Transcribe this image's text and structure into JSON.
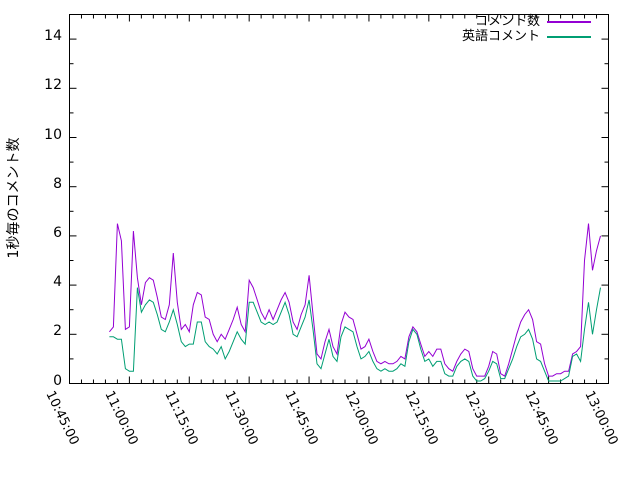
{
  "chart_data": {
    "type": "line",
    "title": "",
    "xlabel": "",
    "ylabel": "1秒毎のコメント数",
    "grid": "off",
    "legend_position": "top-right-inside",
    "background_color": "#ffffff",
    "axis_color": "#000000",
    "ylim": [
      0,
      15
    ],
    "y_ticks": [
      0,
      2,
      4,
      6,
      8,
      10,
      12,
      14
    ],
    "y_minor_step": 1,
    "x_range_minutes": [
      645,
      780
    ],
    "x_major_tick_minutes": 15,
    "x_minor_tick_minutes": 3,
    "x_tick_labels": [
      "10:45:00",
      "11:00:00",
      "11:15:00",
      "11:30:00",
      "11:45:00",
      "12:00:00",
      "12:15:00",
      "12:30:00",
      "12:45:00",
      "13:00:00"
    ],
    "x_times": [
      "10:55:00",
      "10:56:00",
      "10:57:00",
      "10:58:00",
      "10:59:00",
      "11:00:00",
      "11:01:00",
      "11:02:00",
      "11:03:00",
      "11:04:00",
      "11:05:00",
      "11:06:00",
      "11:07:00",
      "11:08:00",
      "11:09:00",
      "11:10:00",
      "11:11:00",
      "11:12:00",
      "11:13:00",
      "11:14:00",
      "11:15:00",
      "11:16:00",
      "11:17:00",
      "11:18:00",
      "11:19:00",
      "11:20:00",
      "11:21:00",
      "11:22:00",
      "11:23:00",
      "11:24:00",
      "11:25:00",
      "11:26:00",
      "11:27:00",
      "11:28:00",
      "11:29:00",
      "11:30:00",
      "11:31:00",
      "11:32:00",
      "11:33:00",
      "11:34:00",
      "11:35:00",
      "11:36:00",
      "11:37:00",
      "11:38:00",
      "11:39:00",
      "11:40:00",
      "11:41:00",
      "11:42:00",
      "11:43:00",
      "11:44:00",
      "11:45:00",
      "11:46:00",
      "11:47:00",
      "11:48:00",
      "11:49:00",
      "11:50:00",
      "11:51:00",
      "11:52:00",
      "11:53:00",
      "11:54:00",
      "11:55:00",
      "11:56:00",
      "11:57:00",
      "11:58:00",
      "11:59:00",
      "12:00:00",
      "12:01:00",
      "12:02:00",
      "12:03:00",
      "12:04:00",
      "12:05:00",
      "12:06:00",
      "12:07:00",
      "12:08:00",
      "12:09:00",
      "12:10:00",
      "12:11:00",
      "12:12:00",
      "12:13:00",
      "12:14:00",
      "12:15:00",
      "12:16:00",
      "12:17:00",
      "12:18:00",
      "12:19:00",
      "12:20:00",
      "12:21:00",
      "12:22:00",
      "12:23:00",
      "12:24:00",
      "12:25:00",
      "12:26:00",
      "12:27:00",
      "12:28:00",
      "12:29:00",
      "12:30:00",
      "12:31:00",
      "12:32:00",
      "12:33:00",
      "12:34:00",
      "12:35:00",
      "12:36:00",
      "12:37:00",
      "12:38:00",
      "12:39:00",
      "12:40:00",
      "12:41:00",
      "12:42:00",
      "12:43:00",
      "12:44:00",
      "12:45:00",
      "12:46:00",
      "12:47:00",
      "12:48:00",
      "12:49:00",
      "12:50:00",
      "12:51:00",
      "12:52:00",
      "12:53:00",
      "12:54:00",
      "12:55:00",
      "12:56:00",
      "12:57:00",
      "12:58:00"
    ],
    "series": [
      {
        "name": "コメント数",
        "color": "#9400d3",
        "values": [
          2.1,
          2.3,
          6.5,
          5.8,
          2.2,
          2.3,
          6.2,
          4.3,
          3.2,
          4.1,
          4.3,
          4.2,
          3.5,
          2.7,
          2.6,
          3.2,
          5.3,
          3.3,
          2.2,
          2.4,
          2.1,
          3.2,
          3.7,
          3.6,
          2.7,
          2.6,
          2.0,
          1.7,
          2.0,
          1.8,
          2.2,
          2.6,
          3.1,
          2.4,
          2.1,
          4.2,
          3.9,
          3.4,
          2.9,
          2.6,
          3.0,
          2.6,
          3.0,
          3.4,
          3.7,
          3.3,
          2.5,
          2.2,
          2.8,
          3.2,
          4.4,
          2.8,
          1.2,
          1.0,
          1.7,
          2.2,
          1.5,
          1.2,
          2.4,
          2.9,
          2.7,
          2.6,
          2.0,
          1.4,
          1.5,
          1.8,
          1.3,
          0.9,
          0.8,
          0.9,
          0.8,
          0.8,
          0.9,
          1.1,
          1.0,
          1.9,
          2.3,
          2.1,
          1.6,
          1.1,
          1.3,
          1.1,
          1.4,
          1.4,
          0.8,
          0.6,
          0.5,
          0.9,
          1.2,
          1.4,
          1.3,
          0.6,
          0.3,
          0.3,
          0.3,
          0.7,
          1.3,
          1.2,
          0.4,
          0.3,
          0.8,
          1.4,
          2.0,
          2.5,
          2.8,
          3.0,
          2.6,
          1.7,
          1.6,
          0.8,
          0.3,
          0.3,
          0.4,
          0.4,
          0.5,
          0.5,
          1.2,
          1.3,
          1.5,
          5.0,
          6.5,
          4.6,
          5.4,
          6.0
        ]
      },
      {
        "name": "英語コメント",
        "color": "#009e73",
        "values": [
          1.9,
          1.9,
          1.8,
          1.8,
          0.6,
          0.5,
          0.5,
          3.9,
          2.9,
          3.2,
          3.4,
          3.3,
          2.8,
          2.2,
          2.1,
          2.5,
          3.0,
          2.4,
          1.7,
          1.5,
          1.6,
          1.6,
          2.5,
          2.5,
          1.7,
          1.5,
          1.4,
          1.2,
          1.5,
          1.0,
          1.3,
          1.7,
          2.1,
          1.8,
          1.6,
          3.3,
          3.3,
          2.9,
          2.5,
          2.4,
          2.5,
          2.4,
          2.5,
          2.9,
          3.3,
          2.8,
          2.0,
          1.9,
          2.3,
          2.7,
          3.4,
          2.2,
          0.8,
          0.6,
          1.2,
          1.8,
          1.1,
          0.9,
          1.9,
          2.3,
          2.2,
          2.1,
          1.5,
          1.0,
          1.1,
          1.3,
          0.9,
          0.6,
          0.5,
          0.6,
          0.5,
          0.5,
          0.6,
          0.8,
          0.7,
          1.7,
          2.2,
          2.0,
          1.4,
          0.9,
          1.0,
          0.7,
          0.9,
          0.9,
          0.4,
          0.3,
          0.3,
          0.7,
          0.9,
          1.0,
          0.9,
          0.3,
          0.1,
          0.1,
          0.2,
          0.5,
          0.9,
          0.8,
          0.2,
          0.2,
          0.6,
          1.0,
          1.5,
          1.9,
          2.0,
          2.2,
          1.8,
          1.0,
          0.9,
          0.5,
          0.1,
          0.1,
          0.1,
          0.1,
          0.2,
          0.3,
          1.1,
          1.2,
          0.9,
          2.2,
          3.3,
          2.0,
          3.0,
          3.9
        ]
      }
    ]
  }
}
